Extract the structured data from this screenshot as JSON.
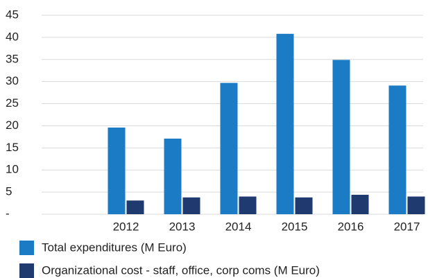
{
  "chart_data": {
    "type": "bar",
    "categories": [
      null,
      "2012",
      "2013",
      "2014",
      "2015",
      "2016",
      "2017"
    ],
    "series": [
      {
        "name": "Total expenditures (M Euro)",
        "color": "#1b7bc4",
        "values": [
          null,
          19.6,
          17.1,
          29.7,
          40.8,
          34.9,
          29.1
        ]
      },
      {
        "name": "Organizational cost - staff, office, corp coms (M Euro)",
        "color": "#1f3a6e",
        "values": [
          null,
          3.1,
          3.8,
          4.0,
          3.8,
          4.4,
          4.0
        ]
      }
    ],
    "ylim": [
      0,
      45
    ],
    "yticks": [
      {
        "value": 0,
        "label": "-"
      },
      5,
      10,
      15,
      20,
      25,
      30,
      35,
      40,
      45
    ],
    "grid": true
  }
}
